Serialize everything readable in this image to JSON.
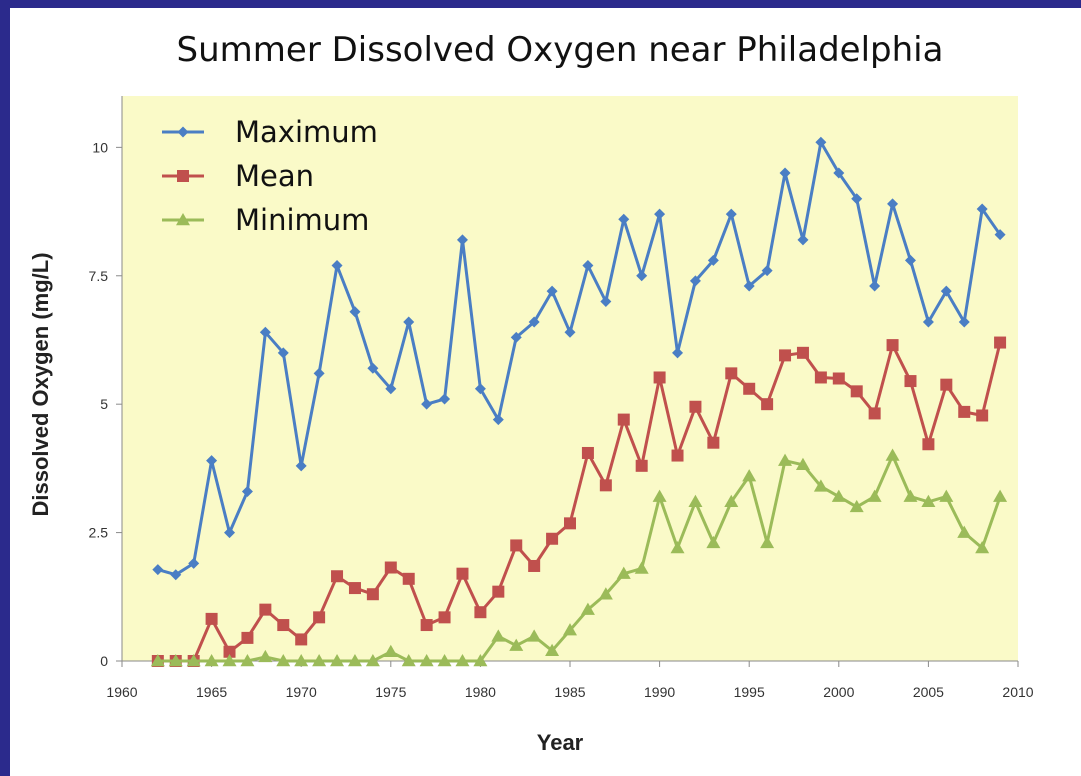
{
  "chart_data": {
    "type": "line",
    "title": "Summer Dissolved Oxygen near Philadelphia",
    "xlabel": "Year",
    "ylabel": "Dissolved Oxygen (mg/L)",
    "xlim": [
      1960,
      2010
    ],
    "ylim": [
      0,
      11
    ],
    "xticks": [
      1960,
      1965,
      1970,
      1975,
      1980,
      1985,
      1990,
      1995,
      2000,
      2005,
      2010
    ],
    "yticks": [
      0,
      2.5,
      5,
      7.5,
      10
    ],
    "xtick_labels": [
      "1960",
      "1965",
      "1970",
      "1975",
      "1980",
      "1985",
      "1990",
      "1995",
      "2000",
      "2005",
      "2010"
    ],
    "ytick_labels": [
      "0",
      "2.5",
      "5",
      "7.5",
      "10"
    ],
    "grid": false,
    "legend_position": "top-left",
    "plot_background": "#fafac8",
    "x": [
      1962,
      1963,
      1964,
      1965,
      1966,
      1967,
      1968,
      1969,
      1970,
      1971,
      1972,
      1973,
      1974,
      1975,
      1976,
      1977,
      1978,
      1979,
      1980,
      1981,
      1982,
      1983,
      1984,
      1985,
      1986,
      1987,
      1988,
      1989,
      1990,
      1991,
      1992,
      1993,
      1994,
      1995,
      1996,
      1997,
      1998,
      1999,
      2000,
      2001,
      2002,
      2003,
      2004,
      2005,
      2006,
      2007,
      2008,
      2009
    ],
    "series": [
      {
        "name": "Maximum",
        "color": "#4a7ec4",
        "marker": "diamond",
        "values": [
          1.78,
          1.68,
          1.9,
          3.9,
          2.5,
          3.3,
          6.4,
          6.0,
          3.8,
          5.6,
          7.7,
          6.8,
          5.7,
          5.3,
          6.6,
          5.0,
          5.1,
          8.2,
          5.3,
          4.7,
          6.3,
          6.6,
          7.2,
          6.4,
          7.7,
          7.0,
          8.6,
          7.5,
          8.7,
          6.0,
          7.4,
          7.8,
          8.7,
          7.3,
          7.6,
          9.5,
          8.2,
          10.1,
          9.5,
          9.0,
          7.3,
          8.9,
          7.8,
          6.6,
          7.2,
          6.6,
          8.8,
          8.3
        ]
      },
      {
        "name": "Mean",
        "color": "#c0504d",
        "marker": "square",
        "values": [
          0.0,
          0.0,
          0.0,
          0.82,
          0.18,
          0.45,
          1.0,
          0.7,
          0.42,
          0.85,
          1.65,
          1.42,
          1.3,
          1.82,
          1.6,
          0.7,
          0.85,
          1.7,
          0.95,
          1.35,
          2.25,
          1.85,
          2.38,
          2.68,
          4.05,
          3.42,
          4.7,
          3.8,
          5.52,
          4.0,
          4.95,
          4.25,
          5.6,
          5.3,
          5.0,
          5.95,
          6.0,
          5.52,
          5.5,
          5.25,
          4.82,
          6.15,
          5.45,
          4.22,
          5.38,
          4.85,
          4.78,
          6.2
        ]
      },
      {
        "name": "Minimum",
        "color": "#9bbb59",
        "marker": "triangle",
        "values": [
          0.0,
          0.0,
          0.0,
          0.0,
          0.0,
          0.0,
          0.08,
          0.0,
          0.0,
          0.0,
          0.0,
          0.0,
          0.0,
          0.18,
          0.0,
          0.0,
          0.0,
          0.0,
          0.0,
          0.48,
          0.3,
          0.48,
          0.2,
          0.6,
          1.0,
          1.3,
          1.7,
          1.8,
          3.2,
          2.2,
          3.1,
          2.3,
          3.1,
          3.6,
          2.3,
          3.9,
          3.82,
          3.4,
          3.2,
          3.0,
          3.2,
          4.0,
          3.2,
          3.1,
          3.2,
          2.5,
          2.2,
          3.2
        ]
      }
    ]
  }
}
